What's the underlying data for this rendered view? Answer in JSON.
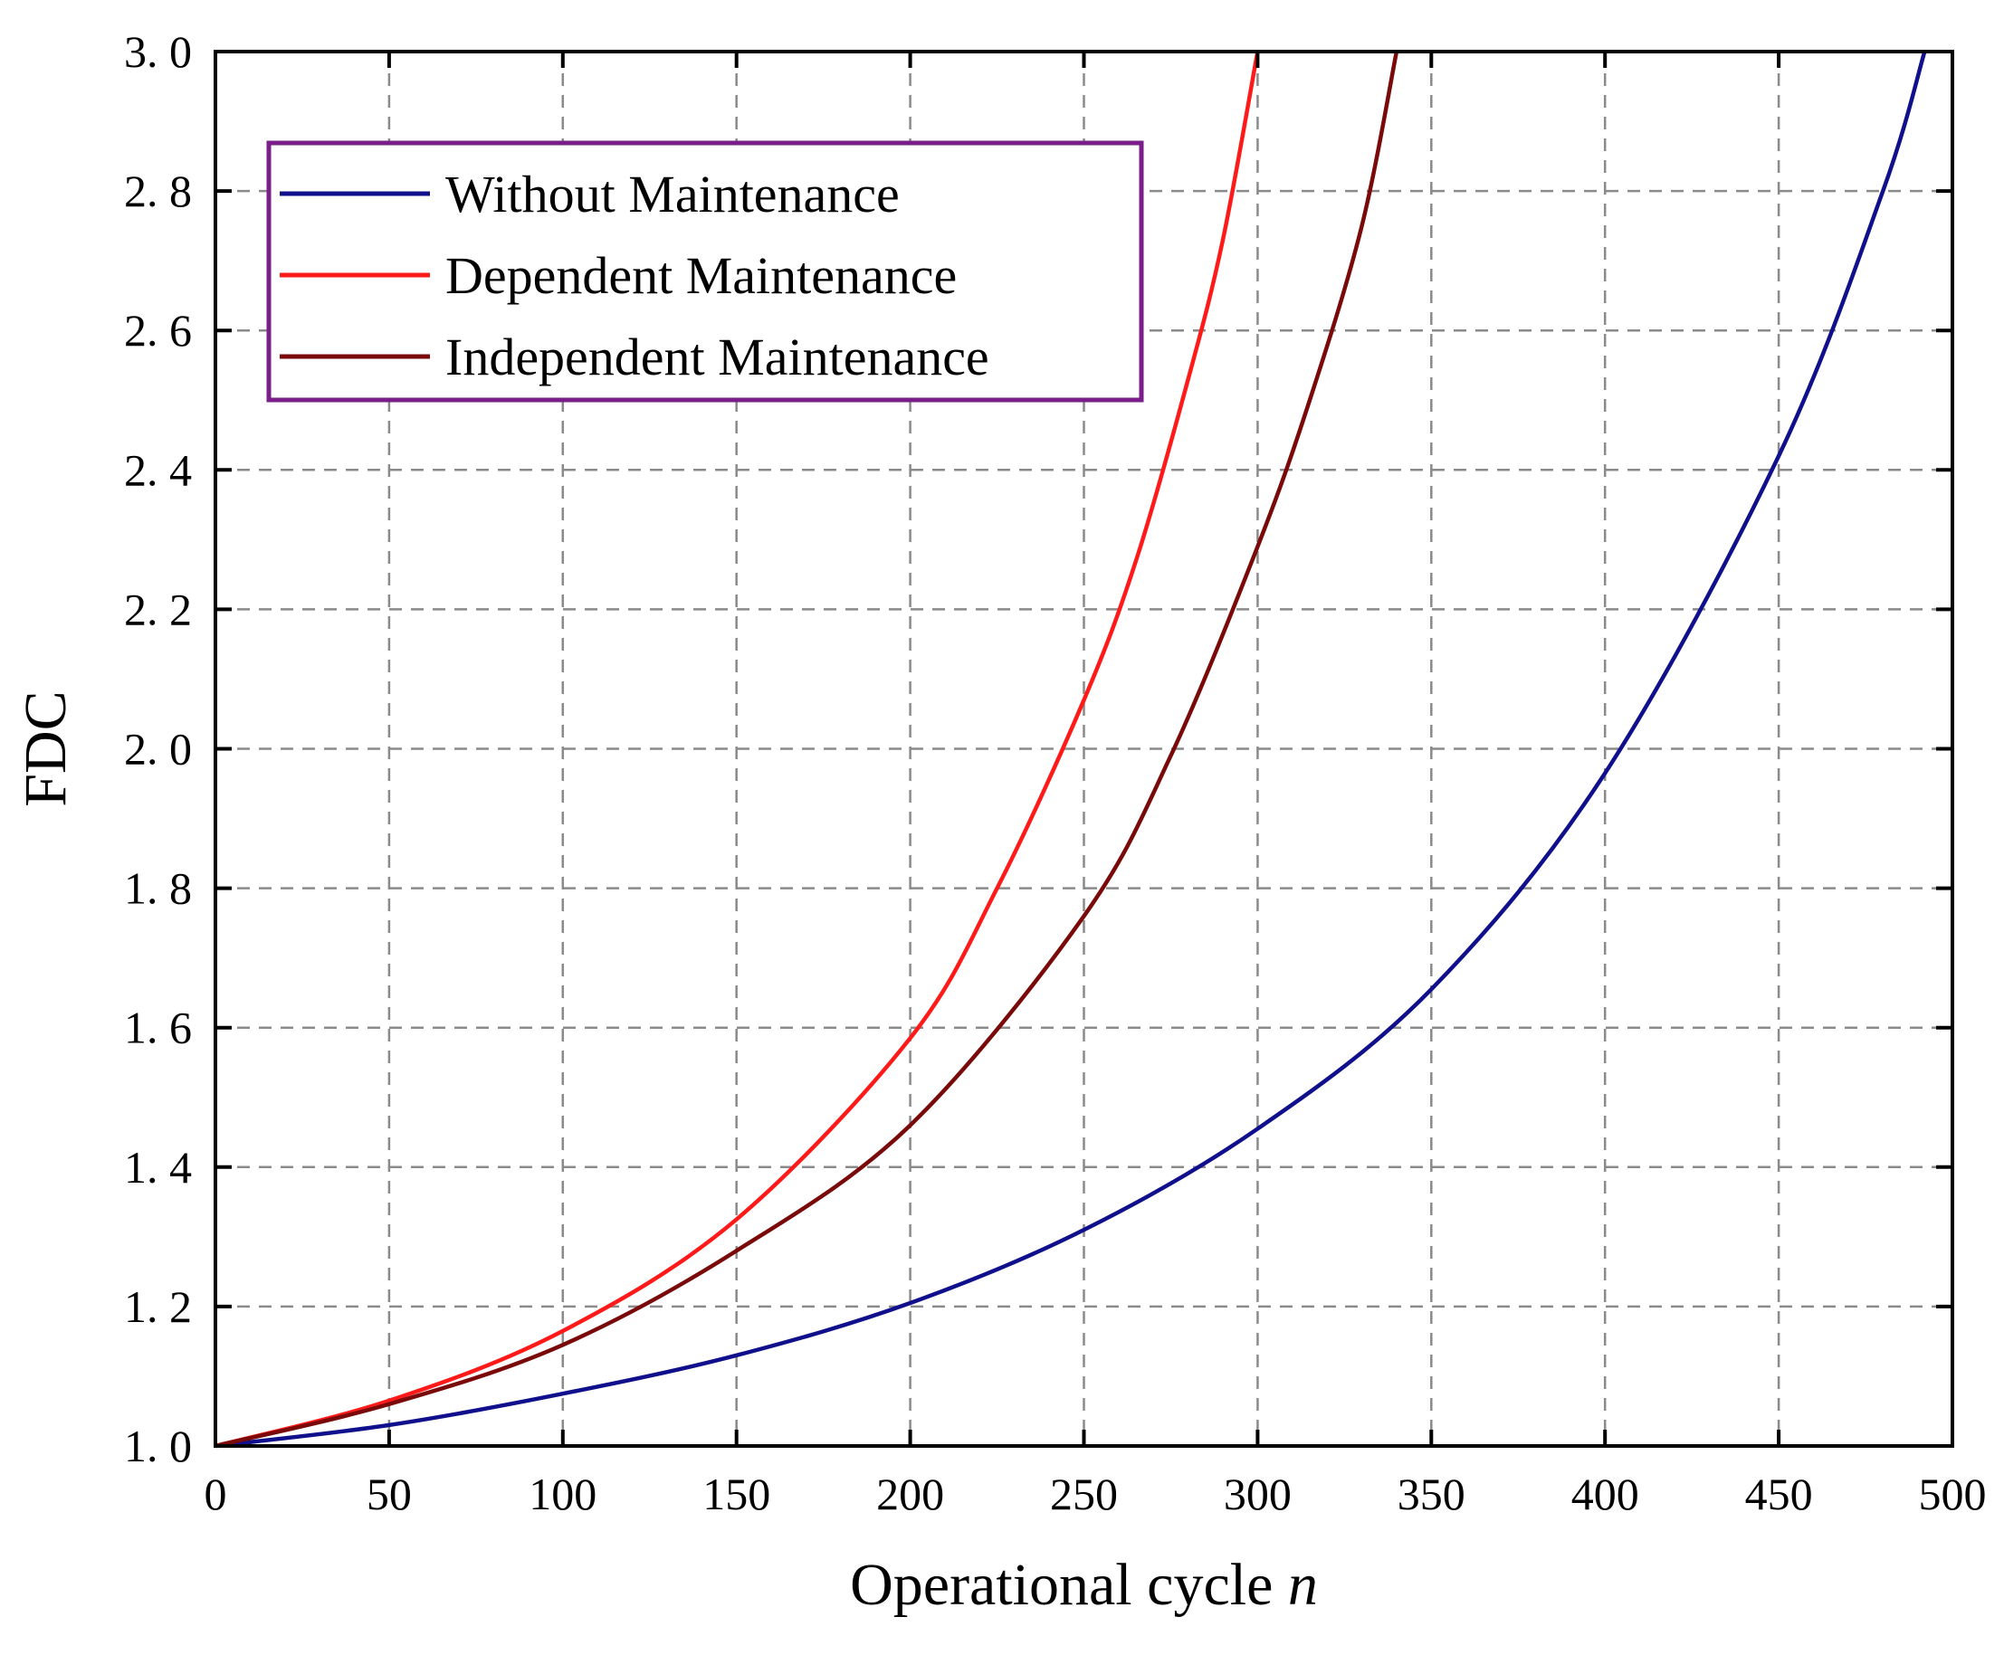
{
  "chart_data": {
    "type": "line",
    "title": "",
    "xlabel": "Operational cycle",
    "xlabel_var": "n",
    "ylabel": "FDC",
    "xlim": [
      0,
      500
    ],
    "ylim": [
      1.0,
      3.0
    ],
    "x_ticks": [
      0,
      50,
      100,
      150,
      200,
      250,
      300,
      350,
      400,
      450,
      500
    ],
    "x_tick_labels": [
      "0",
      "50",
      "100",
      "150",
      "200",
      "250",
      "300",
      "350",
      "400",
      "450",
      "500"
    ],
    "y_ticks": [
      1.0,
      1.2,
      1.4,
      1.6,
      1.8,
      2.0,
      2.2,
      2.4,
      2.6,
      2.8,
      3.0
    ],
    "y_tick_labels": [
      "1. 0",
      "1. 2",
      "1. 4",
      "1. 6",
      "1. 8",
      "2. 0",
      "2. 2",
      "2. 4",
      "2. 6",
      "2. 8",
      "3. 0"
    ],
    "grid": true,
    "legend_position": "top-left",
    "legend_border_color": "#7a1f8a",
    "series": [
      {
        "name": "Without Maintenance",
        "color": "#10108c",
        "x": [
          0,
          50,
          100,
          150,
          200,
          250,
          300,
          350,
          400,
          450,
          480,
          492
        ],
        "y": [
          1.0,
          1.03,
          1.075,
          1.13,
          1.205,
          1.31,
          1.455,
          1.655,
          1.965,
          2.42,
          2.8,
          3.0
        ]
      },
      {
        "name": "Dependent Maintenance",
        "color": "#ff1a1a",
        "x": [
          0,
          50,
          100,
          150,
          200,
          225,
          250,
          265,
          280,
          290,
          300
        ],
        "y": [
          1.0,
          1.065,
          1.165,
          1.325,
          1.585,
          1.8,
          2.07,
          2.27,
          2.53,
          2.73,
          3.0
        ]
      },
      {
        "name": "Independent Maintenance",
        "color": "#7a0a0a",
        "x": [
          0,
          50,
          100,
          150,
          200,
          250,
          275,
          300,
          315,
          330,
          340
        ],
        "y": [
          1.0,
          1.06,
          1.145,
          1.28,
          1.46,
          1.76,
          1.99,
          2.29,
          2.5,
          2.75,
          3.0
        ]
      }
    ]
  }
}
